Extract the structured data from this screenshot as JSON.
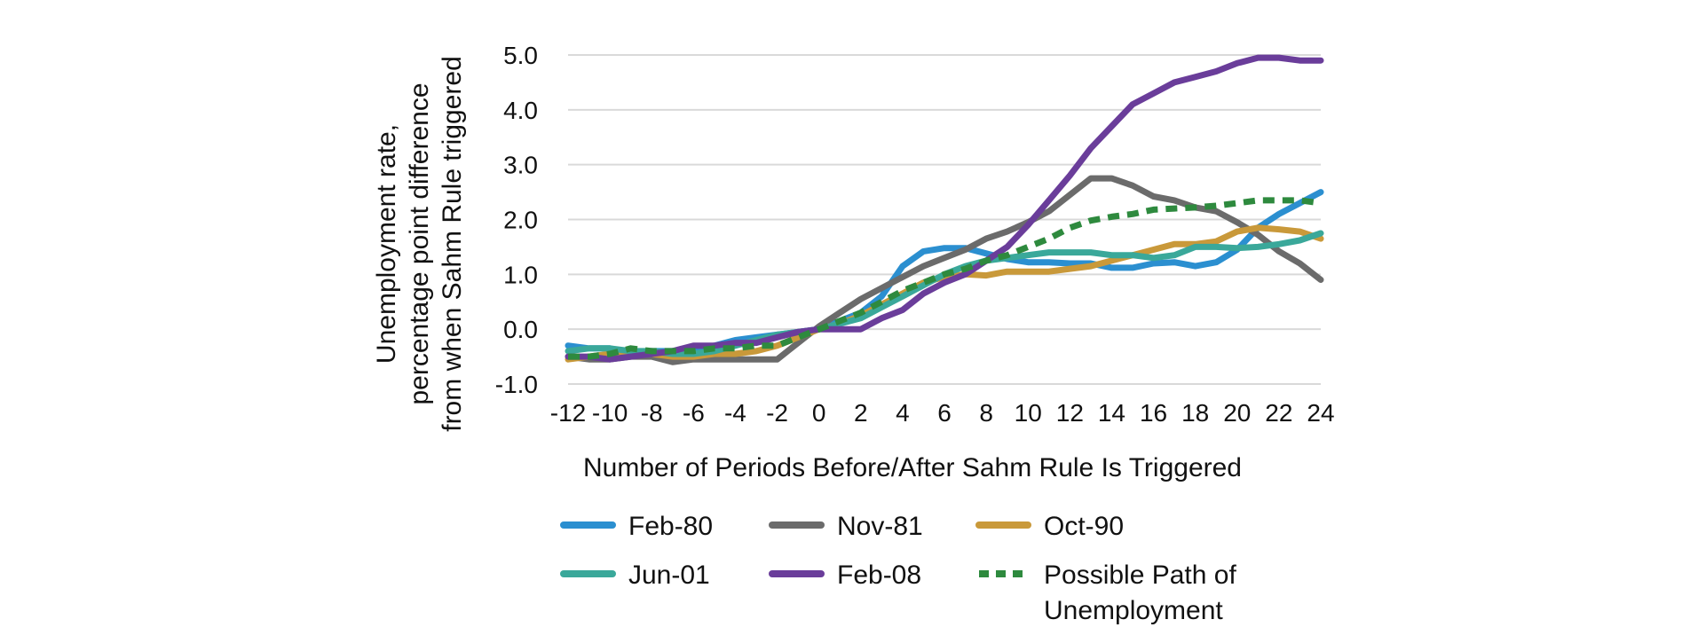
{
  "chart_data": {
    "type": "line",
    "title": "",
    "xlabel": "Number of Periods Before/After Sahm Rule Is Triggered",
    "ylabel_lines": [
      "Unemployment rate,",
      "percentage point difference",
      "from when Sahm Rule triggered"
    ],
    "x": [
      -12,
      -11,
      -10,
      -9,
      -8,
      -7,
      -6,
      -5,
      -4,
      -3,
      -2,
      -1,
      0,
      1,
      2,
      3,
      4,
      5,
      6,
      7,
      8,
      9,
      10,
      11,
      12,
      13,
      14,
      15,
      16,
      17,
      18,
      19,
      20,
      21,
      22,
      23,
      24
    ],
    "x_ticks": [
      -12,
      -10,
      -8,
      -6,
      -4,
      -2,
      0,
      2,
      4,
      6,
      8,
      10,
      12,
      14,
      16,
      18,
      20,
      22,
      24
    ],
    "x_tick_labels": [
      "-12",
      "-10",
      "-8",
      "-6",
      "-4",
      "-2",
      "0",
      "2",
      "4",
      "6",
      "8",
      "10",
      "12",
      "14",
      "16",
      "18",
      "20",
      "22",
      "24"
    ],
    "ylim": [
      -1.0,
      5.0
    ],
    "y_ticks": [
      -1.0,
      0.0,
      1.0,
      2.0,
      3.0,
      4.0,
      5.0
    ],
    "y_tick_labels": [
      "-1.0",
      "0.0",
      "1.0",
      "2.0",
      "3.0",
      "4.0",
      "5.0"
    ],
    "grid": "horizontal",
    "legend_position": "bottom",
    "series": [
      {
        "name": "Feb-80",
        "color": "#2b8fd0",
        "dash": "solid",
        "values": [
          -0.3,
          -0.35,
          -0.35,
          -0.45,
          -0.4,
          -0.4,
          -0.35,
          -0.3,
          -0.2,
          -0.15,
          -0.1,
          -0.05,
          0.0,
          0.15,
          0.3,
          0.6,
          1.15,
          1.42,
          1.48,
          1.48,
          1.38,
          1.28,
          1.22,
          1.22,
          1.2,
          1.2,
          1.12,
          1.12,
          1.2,
          1.22,
          1.15,
          1.22,
          1.45,
          1.85,
          2.1,
          2.3,
          2.5
        ]
      },
      {
        "name": "Nov-81",
        "color": "#6b6b6b",
        "dash": "solid",
        "values": [
          -0.5,
          -0.55,
          -0.55,
          -0.5,
          -0.5,
          -0.6,
          -0.55,
          -0.55,
          -0.55,
          -0.55,
          -0.55,
          -0.25,
          0.05,
          0.3,
          0.55,
          0.75,
          0.95,
          1.15,
          1.3,
          1.45,
          1.65,
          1.78,
          1.95,
          2.15,
          2.45,
          2.75,
          2.75,
          2.62,
          2.42,
          2.35,
          2.22,
          2.15,
          1.95,
          1.72,
          1.42,
          1.2,
          0.9
        ]
      },
      {
        "name": "Oct-90",
        "color": "#c9993a",
        "dash": "solid",
        "values": [
          -0.55,
          -0.5,
          -0.45,
          -0.45,
          -0.45,
          -0.5,
          -0.5,
          -0.45,
          -0.45,
          -0.4,
          -0.3,
          -0.15,
          0.0,
          0.1,
          0.25,
          0.45,
          0.65,
          0.85,
          0.95,
          1.0,
          0.98,
          1.05,
          1.05,
          1.05,
          1.1,
          1.15,
          1.25,
          1.35,
          1.45,
          1.55,
          1.55,
          1.6,
          1.78,
          1.85,
          1.82,
          1.78,
          1.65
        ]
      },
      {
        "name": "Jun-01",
        "color": "#3aa89a",
        "dash": "solid",
        "values": [
          -0.4,
          -0.35,
          -0.35,
          -0.4,
          -0.4,
          -0.45,
          -0.45,
          -0.4,
          -0.3,
          -0.2,
          -0.1,
          -0.05,
          0.0,
          0.1,
          0.2,
          0.4,
          0.6,
          0.8,
          1.0,
          1.15,
          1.25,
          1.3,
          1.35,
          1.4,
          1.4,
          1.4,
          1.35,
          1.35,
          1.3,
          1.35,
          1.5,
          1.5,
          1.48,
          1.5,
          1.55,
          1.62,
          1.75
        ]
      },
      {
        "name": "Feb-08",
        "color": "#6a3d9a",
        "dash": "solid",
        "values": [
          -0.5,
          -0.5,
          -0.55,
          -0.5,
          -0.45,
          -0.4,
          -0.3,
          -0.3,
          -0.25,
          -0.25,
          -0.15,
          -0.05,
          0.0,
          0.0,
          0.0,
          0.2,
          0.35,
          0.65,
          0.85,
          1.0,
          1.25,
          1.5,
          1.9,
          2.35,
          2.8,
          3.3,
          3.7,
          4.1,
          4.3,
          4.5,
          4.6,
          4.7,
          4.85,
          4.95,
          4.95,
          4.9,
          4.9
        ]
      },
      {
        "name": "Possible Path of Unemployment",
        "legend_lines": [
          "Possible Path of",
          "Unemployment"
        ],
        "color": "#2e8a3e",
        "dash": "dashed",
        "values": [
          -0.5,
          -0.5,
          -0.45,
          -0.35,
          -0.4,
          -0.4,
          -0.4,
          -0.35,
          -0.35,
          -0.3,
          -0.3,
          -0.15,
          0.0,
          0.15,
          0.3,
          0.5,
          0.7,
          0.85,
          1.0,
          1.1,
          1.25,
          1.35,
          1.5,
          1.65,
          1.85,
          1.98,
          2.05,
          2.1,
          2.18,
          2.2,
          2.22,
          2.25,
          2.3,
          2.35,
          2.35,
          2.35,
          2.3
        ]
      }
    ]
  }
}
